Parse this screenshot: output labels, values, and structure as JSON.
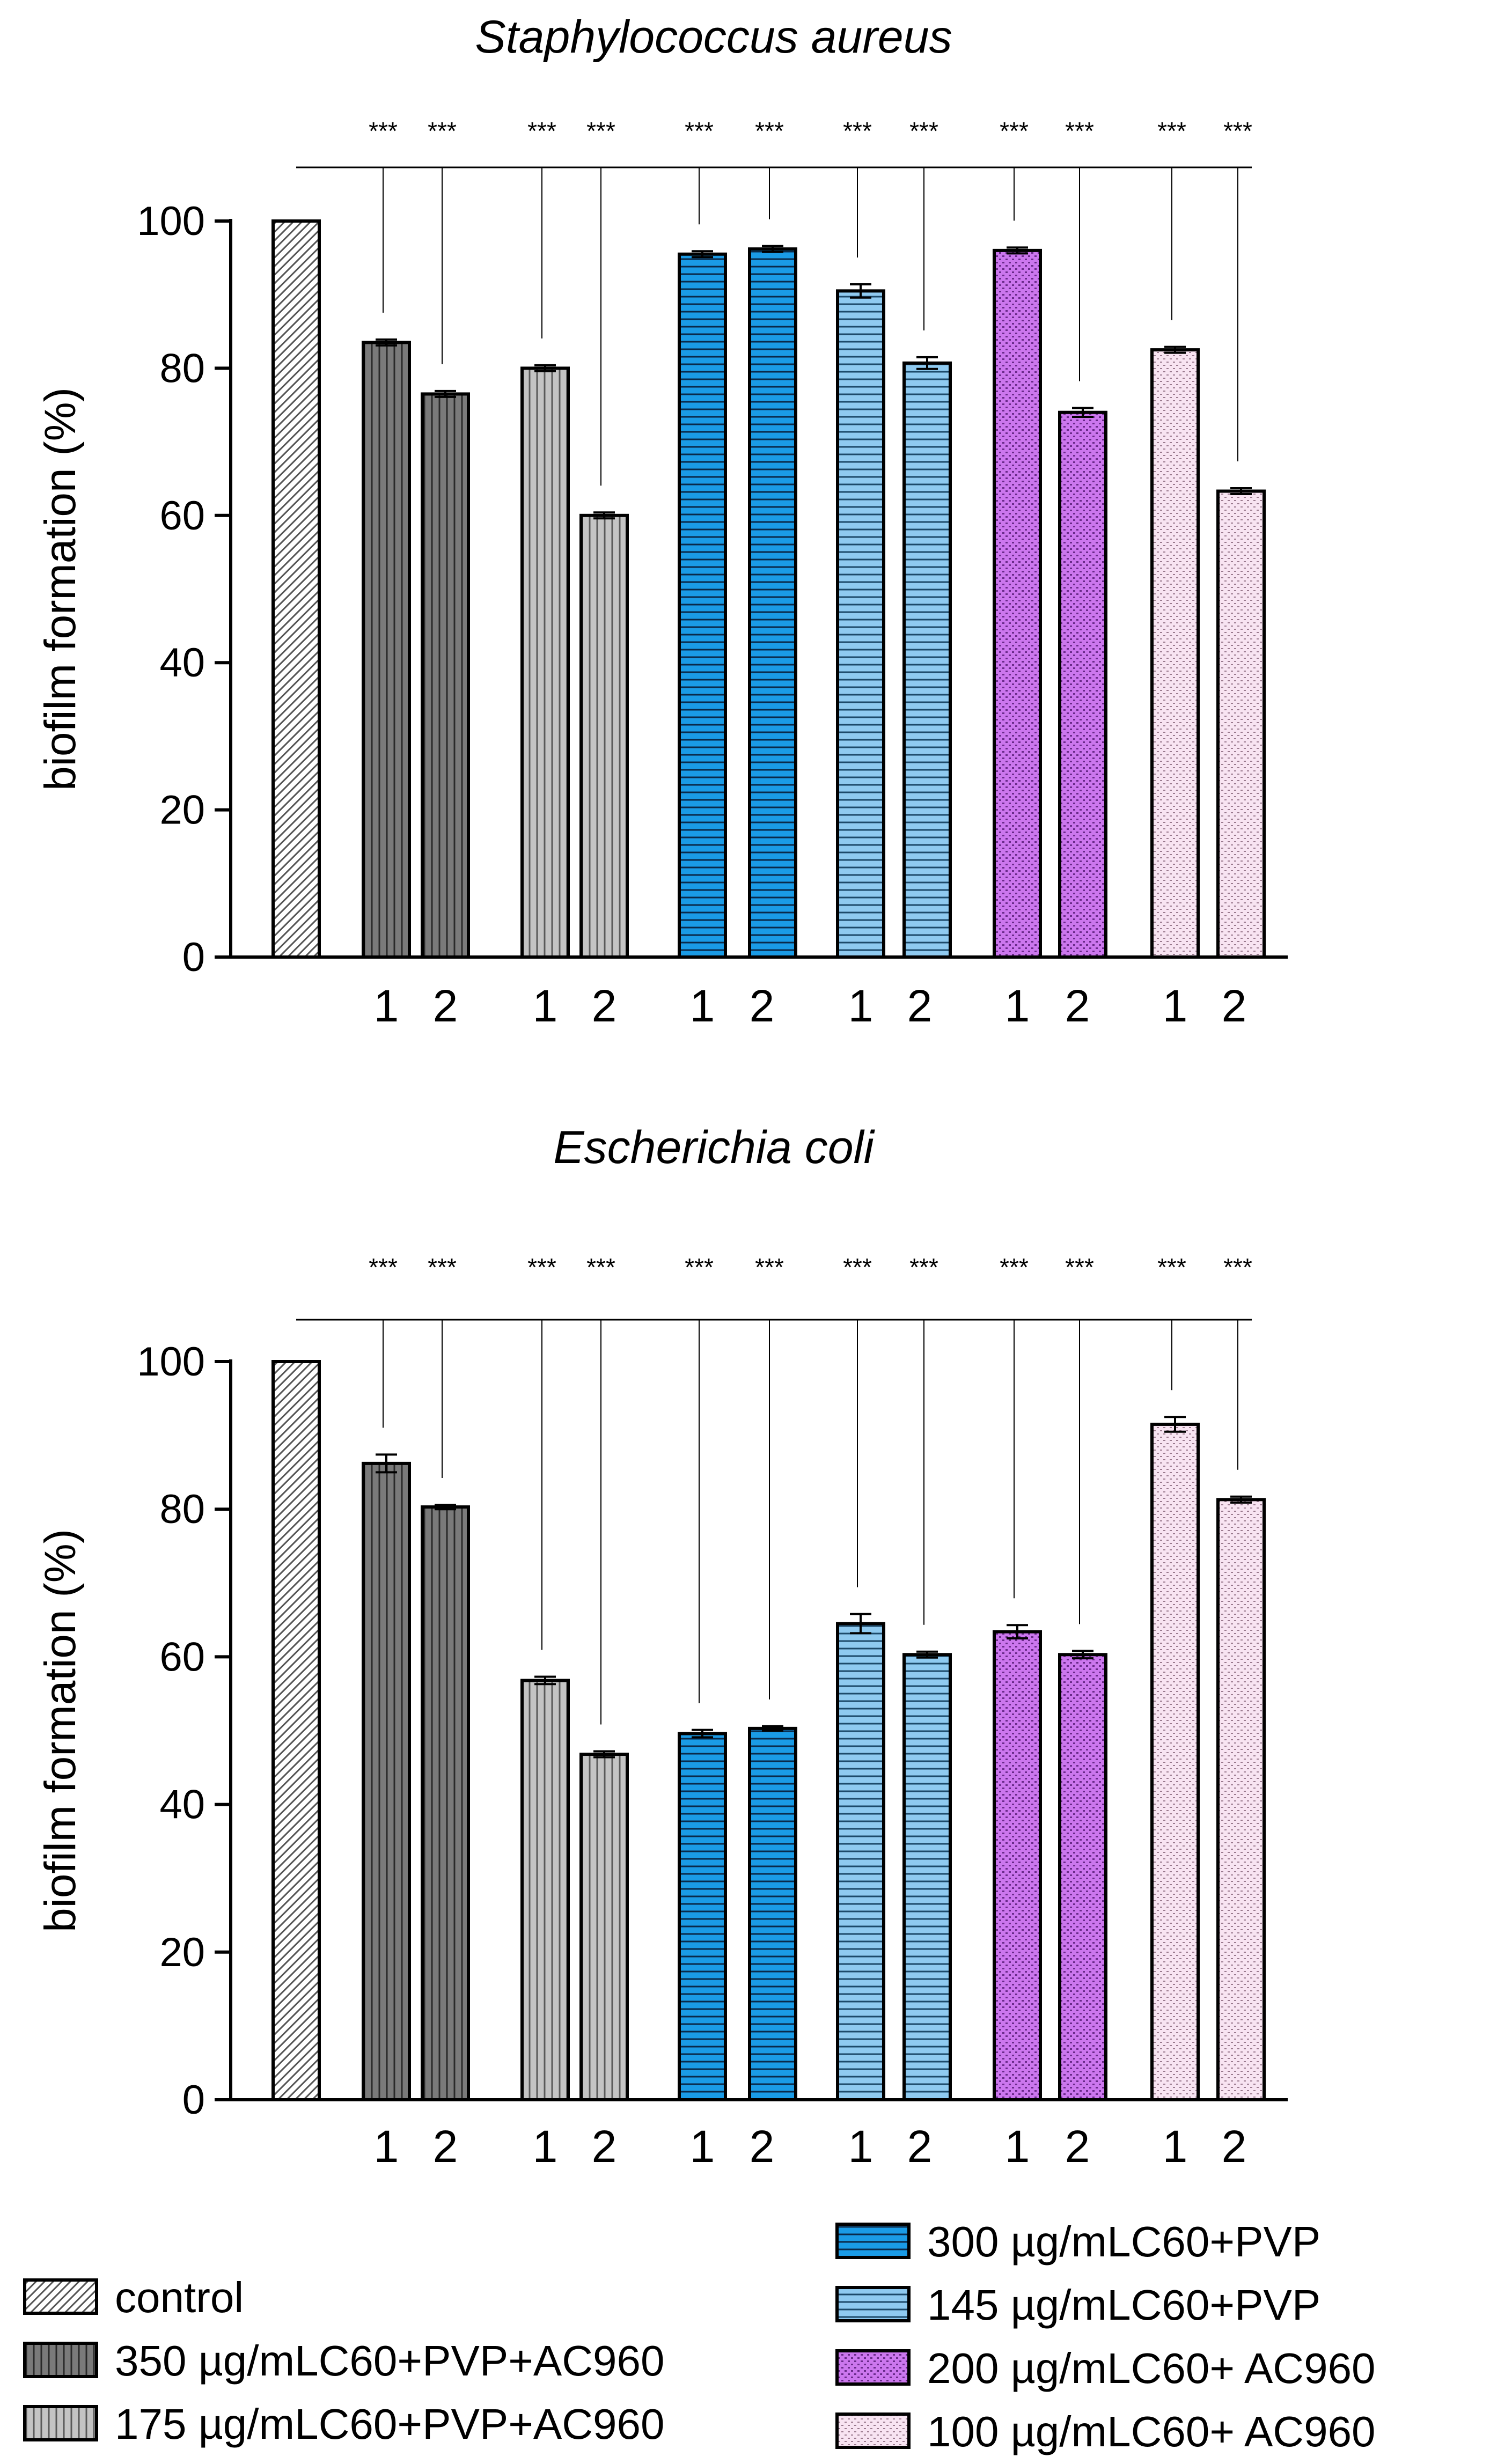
{
  "legend": {
    "items": [
      {
        "label": "control",
        "pattern": "control"
      },
      {
        "label": "350 µg/mLC60+PVP+AC960",
        "pattern": "darkgray"
      },
      {
        "label": "175 µg/mLC60+PVP+AC960",
        "pattern": "lightgray"
      },
      {
        "label": "300 µg/mLC60+PVP",
        "pattern": "blue"
      },
      {
        "label": "145 µg/mLC60+PVP",
        "pattern": "lightblue"
      },
      {
        "label": "200 µg/mLC60+ AC960",
        "pattern": "purple"
      },
      {
        "label": "100 µg/mLC60+ AC960",
        "pattern": "pink"
      }
    ]
  },
  "colors": {
    "axis": "#000000",
    "darkgray": "#7a7a7a",
    "lightgray": "#c4c4c4",
    "blue": "#1a9be6",
    "lightblue": "#8fcaf0",
    "purple": "#cc77ee",
    "pink": "#f8e4f2",
    "control": "#ffffff"
  },
  "chart_data": [
    {
      "type": "bar",
      "title": "Staphylococcus aureus",
      "ylabel": "biofilm formation (%)",
      "xlabel": "",
      "ylim": [
        0,
        100
      ],
      "yticks": [
        0,
        20,
        40,
        60,
        80,
        100
      ],
      "grid": false,
      "legend_position": "bottom",
      "significance_label": "***",
      "series": [
        {
          "name": "control",
          "pattern": "control",
          "values": [
            100
          ],
          "errors": [
            0
          ],
          "tick_labels": [
            ""
          ]
        },
        {
          "name": "350 µg/mLC60+PVP+AC960",
          "pattern": "darkgray",
          "values": [
            83.5,
            76.5
          ],
          "errors": [
            0.4,
            0.4
          ],
          "tick_labels": [
            "1",
            "2"
          ]
        },
        {
          "name": "175 µg/mLC60+PVP+AC960",
          "pattern": "lightgray",
          "values": [
            80,
            60
          ],
          "errors": [
            0.4,
            0.4
          ],
          "tick_labels": [
            "1",
            "2"
          ]
        },
        {
          "name": "300 µg/mLC60+PVP",
          "pattern": "blue",
          "values": [
            95.5,
            96.2
          ],
          "errors": [
            0.4,
            0.4
          ],
          "tick_labels": [
            "1",
            "2"
          ]
        },
        {
          "name": "145 µg/mLC60+PVP",
          "pattern": "lightblue",
          "values": [
            90.5,
            80.7
          ],
          "errors": [
            0.9,
            0.8
          ],
          "tick_labels": [
            "1",
            "2"
          ]
        },
        {
          "name": "200 µg/mLC60+ AC960",
          "pattern": "purple",
          "values": [
            96,
            74
          ],
          "errors": [
            0.4,
            0.6
          ],
          "tick_labels": [
            "1",
            "2"
          ]
        },
        {
          "name": "100 µg/mLC60+ AC960",
          "pattern": "pink",
          "values": [
            82.5,
            63.3
          ],
          "errors": [
            0.4,
            0.4
          ],
          "tick_labels": [
            "1",
            "2"
          ]
        }
      ]
    },
    {
      "type": "bar",
      "title": "Escherichia coli",
      "ylabel": "biofilm formation (%)",
      "xlabel": "",
      "ylim": [
        0,
        100
      ],
      "yticks": [
        0,
        20,
        40,
        60,
        80,
        100
      ],
      "grid": false,
      "legend_position": "bottom",
      "significance_label": "***",
      "series": [
        {
          "name": "control",
          "pattern": "control",
          "values": [
            100
          ],
          "errors": [
            0
          ],
          "tick_labels": [
            ""
          ]
        },
        {
          "name": "350 µg/mLC60+PVP+AC960",
          "pattern": "darkgray",
          "values": [
            86.2,
            80.3
          ],
          "errors": [
            1.2,
            0.3
          ],
          "tick_labels": [
            "1",
            "2"
          ]
        },
        {
          "name": "175 µg/mLC60+PVP+AC960",
          "pattern": "lightgray",
          "values": [
            56.8,
            46.8
          ],
          "errors": [
            0.5,
            0.4
          ],
          "tick_labels": [
            "1",
            "2"
          ]
        },
        {
          "name": "300 µg/mLC60+PVP",
          "pattern": "blue",
          "values": [
            49.6,
            50.3
          ],
          "errors": [
            0.5,
            0.3
          ],
          "tick_labels": [
            "1",
            "2"
          ]
        },
        {
          "name": "145 µg/mLC60+PVP",
          "pattern": "lightblue",
          "values": [
            64.5,
            60.3
          ],
          "errors": [
            1.3,
            0.4
          ],
          "tick_labels": [
            "1",
            "2"
          ]
        },
        {
          "name": "200 µg/mLC60+ AC960",
          "pattern": "purple",
          "values": [
            63.4,
            60.3
          ],
          "errors": [
            0.9,
            0.5
          ],
          "tick_labels": [
            "1",
            "2"
          ]
        },
        {
          "name": "100 µg/mLC60+ AC960",
          "pattern": "pink",
          "values": [
            91.5,
            81.3
          ],
          "errors": [
            1.0,
            0.4
          ],
          "tick_labels": [
            "1",
            "2"
          ]
        }
      ]
    }
  ]
}
